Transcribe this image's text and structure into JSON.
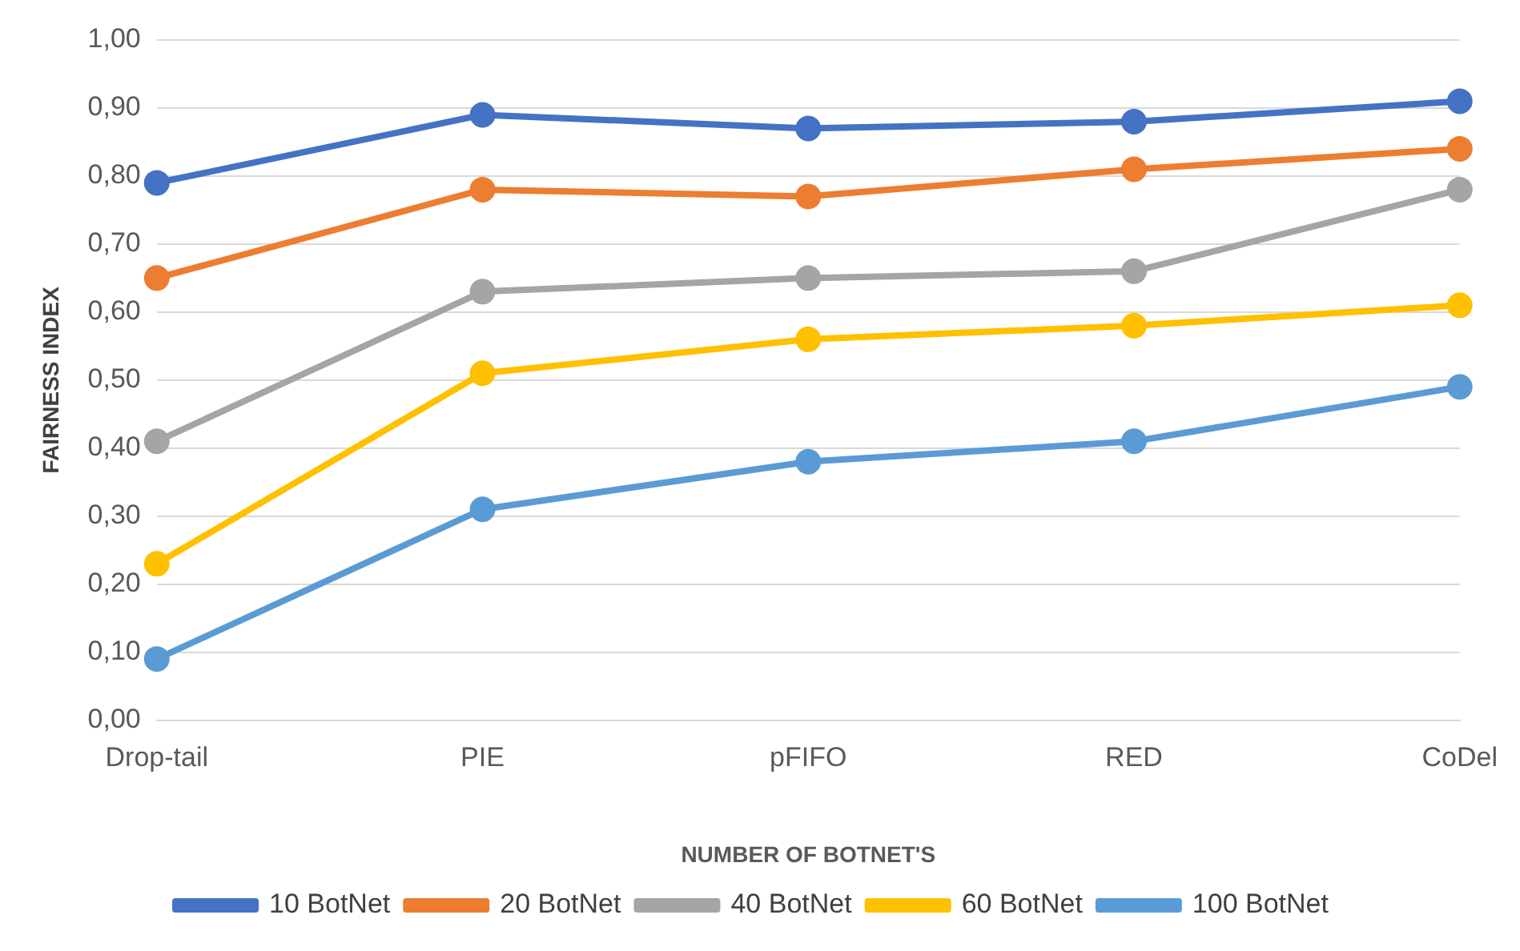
{
  "chart_data": {
    "type": "line",
    "xlabel": "NUMBER OF BOTNET'S",
    "ylabel": "FAIRNESS INDEX",
    "categories": [
      "Drop-tail",
      "PIE",
      "pFIFO",
      "RED",
      "CoDel"
    ],
    "series": [
      {
        "name": "10 BotNet",
        "color": "#4472c4",
        "values": [
          0.79,
          0.89,
          0.87,
          0.88,
          0.91
        ]
      },
      {
        "name": "20 BotNet",
        "color": "#ed7d31",
        "values": [
          0.65,
          0.78,
          0.77,
          0.81,
          0.84
        ]
      },
      {
        "name": "40 BotNet",
        "color": "#a5a5a5",
        "values": [
          0.41,
          0.63,
          0.65,
          0.66,
          0.78
        ]
      },
      {
        "name": "60 BotNet",
        "color": "#ffc000",
        "values": [
          0.23,
          0.51,
          0.56,
          0.58,
          0.61
        ]
      },
      {
        "name": "100 BotNet",
        "color": "#5b9bd5",
        "values": [
          0.09,
          0.31,
          0.38,
          0.41,
          0.49
        ]
      }
    ],
    "ylim": [
      0,
      1
    ],
    "yticks": [
      {
        "value": 0,
        "label": "0,00"
      },
      {
        "value": 0.1,
        "label": "0,10"
      },
      {
        "value": 0.2,
        "label": "0,20"
      },
      {
        "value": 0.3,
        "label": "0,30"
      },
      {
        "value": 0.4,
        "label": "0,40"
      },
      {
        "value": 0.5,
        "label": "0,50"
      },
      {
        "value": 0.6,
        "label": "0,60"
      },
      {
        "value": 0.7,
        "label": "0,70"
      },
      {
        "value": 0.8,
        "label": "0,80"
      },
      {
        "value": 0.9,
        "label": "0,90"
      },
      {
        "value": 1,
        "label": "1,00"
      }
    ],
    "grid": "y",
    "legend": "bottom",
    "marker": "circle",
    "line_style": "solid"
  }
}
